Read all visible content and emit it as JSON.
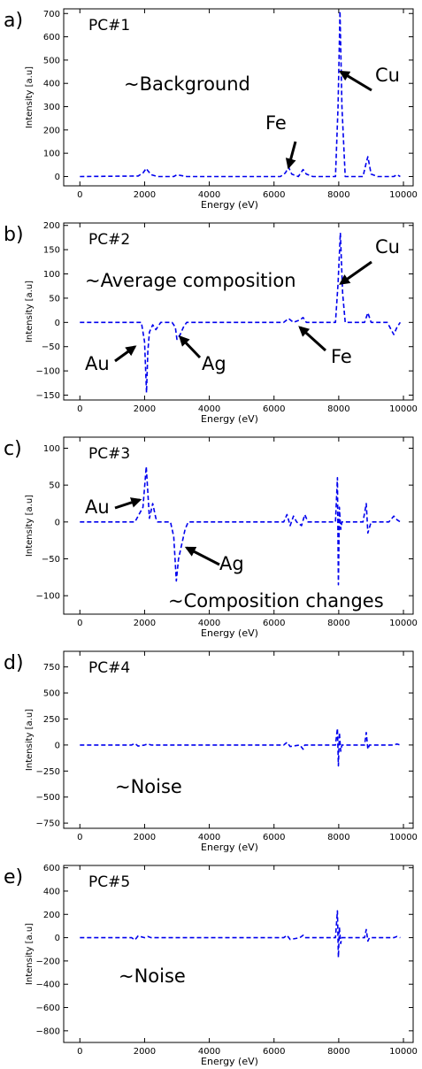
{
  "chart_data": [
    {
      "type": "line",
      "panel_letter": "a)",
      "pc_label": "PC#1",
      "annotation": "~Background",
      "xlabel": "Energy (eV)",
      "ylabel": "Intensity [a.u]",
      "xlim": [
        -500,
        10300
      ],
      "ylim": [
        -40,
        720
      ],
      "xticks": [
        0,
        2000,
        4000,
        6000,
        8000,
        10000
      ],
      "xtick_labels": [
        "0",
        "2000",
        "4000",
        "6000",
        "8000",
        "10000"
      ],
      "yticks": [
        0,
        100,
        200,
        300,
        400,
        500,
        600,
        700
      ],
      "ytick_labels": [
        "0",
        "100",
        "200",
        "300",
        "400",
        "500",
        "600",
        "700"
      ],
      "color": "#0000ee",
      "element_labels": [
        {
          "text": "Fe",
          "target": [
            6450,
            40
          ]
        },
        {
          "text": "Cu",
          "target": [
            8060,
            450
          ]
        }
      ],
      "series": [
        {
          "x": [
            0,
            1800,
            1950,
            2050,
            2100,
            2200,
            2400,
            2900,
            3000,
            3100,
            3300,
            6200,
            6350,
            6450,
            6550,
            6750,
            6900,
            7000,
            7200,
            7900,
            7980,
            8040,
            8100,
            8200,
            8750,
            8850,
            8900,
            9000,
            9200,
            9700,
            9800,
            9900
          ],
          "y": [
            0,
            2,
            15,
            35,
            25,
            8,
            0,
            0,
            8,
            5,
            0,
            0,
            15,
            40,
            10,
            0,
            30,
            10,
            0,
            0,
            300,
            710,
            300,
            0,
            0,
            60,
            85,
            10,
            0,
            0,
            8,
            0
          ]
        }
      ]
    },
    {
      "type": "line",
      "panel_letter": "b)",
      "pc_label": "PC#2",
      "annotation": "~Average composition",
      "xlabel": "Energy (eV)",
      "ylabel": "Intensity [a.u]",
      "xlim": [
        -500,
        10300
      ],
      "ylim": [
        -160,
        205
      ],
      "xticks": [
        0,
        2000,
        4000,
        6000,
        8000,
        10000
      ],
      "xtick_labels": [
        "0",
        "2000",
        "4000",
        "6000",
        "8000",
        "10000"
      ],
      "yticks": [
        -150,
        -100,
        -50,
        0,
        50,
        100,
        150,
        200
      ],
      "ytick_labels": [
        "−150",
        "−100",
        "−50",
        "0",
        "50",
        "100",
        "150",
        "200"
      ],
      "color": "#0000ee",
      "element_labels": [
        {
          "text": "Cu",
          "target": [
            8060,
            80
          ]
        },
        {
          "text": "Au",
          "target": [
            1700,
            -50
          ]
        },
        {
          "text": "Ag",
          "target": [
            3100,
            -30
          ]
        },
        {
          "text": "Fe",
          "target": [
            6800,
            -10
          ]
        }
      ],
      "series": [
        {
          "x": [
            0,
            1900,
            2000,
            2060,
            2100,
            2150,
            2250,
            2350,
            2500,
            2850,
            2950,
            3000,
            3100,
            3200,
            3300,
            6300,
            6450,
            6600,
            6800,
            6900,
            7000,
            7900,
            7980,
            8050,
            8120,
            8200,
            8800,
            8900,
            9000,
            9500,
            9700,
            9800,
            9900
          ],
          "y": [
            0,
            0,
            -40,
            -145,
            -60,
            -20,
            -5,
            -15,
            0,
            0,
            -10,
            -35,
            -25,
            -10,
            0,
            0,
            8,
            0,
            5,
            10,
            0,
            0,
            80,
            185,
            60,
            0,
            0,
            20,
            0,
            0,
            -25,
            -10,
            0
          ]
        }
      ]
    },
    {
      "type": "line",
      "panel_letter": "c)",
      "pc_label": "PC#3",
      "annotation": "~Composition changes",
      "xlabel": "Energy (eV)",
      "ylabel": "Intensity [a.u]",
      "xlim": [
        -500,
        10300
      ],
      "ylim": [
        -125,
        115
      ],
      "xticks": [
        0,
        2000,
        4000,
        6000,
        8000,
        10000
      ],
      "xtick_labels": [
        "0",
        "2000",
        "4000",
        "6000",
        "8000",
        "10000"
      ],
      "yticks": [
        -100,
        -50,
        0,
        50,
        100
      ],
      "ytick_labels": [
        "−100",
        "−50",
        "0",
        "50",
        "100"
      ],
      "color": "#0000ee",
      "element_labels": [
        {
          "text": "Au",
          "target": [
            1850,
            30
          ]
        },
        {
          "text": "Ag",
          "target": [
            3300,
            -35
          ]
        }
      ],
      "series": [
        {
          "x": [
            0,
            1700,
            1800,
            1950,
            2050,
            2100,
            2150,
            2250,
            2350,
            2400,
            2800,
            2900,
            2980,
            3050,
            3150,
            3250,
            3350,
            6300,
            6400,
            6500,
            6600,
            6700,
            6850,
            6950,
            7050,
            7900,
            7960,
            7990,
            8020,
            8060,
            8100,
            8750,
            8850,
            8900,
            9000,
            9550,
            9700,
            9800,
            9900
          ],
          "y": [
            0,
            0,
            8,
            20,
            75,
            40,
            5,
            25,
            5,
            0,
            0,
            -20,
            -80,
            -50,
            -30,
            -10,
            0,
            0,
            10,
            -5,
            8,
            0,
            -5,
            10,
            0,
            0,
            60,
            -85,
            20,
            -10,
            0,
            0,
            25,
            -15,
            0,
            0,
            8,
            3,
            0
          ]
        }
      ]
    },
    {
      "type": "line",
      "panel_letter": "d)",
      "pc_label": "PC#4",
      "annotation": "~Noise",
      "xlabel": "Energy (eV)",
      "ylabel": "Intensity [a.u]",
      "xlim": [
        -500,
        10300
      ],
      "ylim": [
        -800,
        900
      ],
      "xticks": [
        0,
        2000,
        4000,
        6000,
        8000,
        10000
      ],
      "xtick_labels": [
        "0",
        "2000",
        "4000",
        "6000",
        "8000",
        "10000"
      ],
      "yticks": [
        -750,
        -500,
        -250,
        0,
        250,
        500,
        750
      ],
      "ytick_labels": [
        "−750",
        "−500",
        "−250",
        "0",
        "250",
        "500",
        "750"
      ],
      "color": "#0000ee",
      "element_labels": [],
      "series": [
        {
          "x": [
            0,
            1600,
            1700,
            1800,
            2000,
            2100,
            2200,
            6300,
            6400,
            6500,
            6800,
            6900,
            6950,
            7900,
            7960,
            7990,
            8020,
            8060,
            8100,
            8800,
            8850,
            8900,
            8950,
            9700,
            9800,
            9900
          ],
          "y": [
            0,
            0,
            15,
            -10,
            0,
            10,
            0,
            0,
            25,
            -15,
            0,
            -40,
            0,
            0,
            160,
            -200,
            120,
            -60,
            0,
            0,
            120,
            -40,
            0,
            0,
            10,
            0
          ]
        }
      ]
    },
    {
      "type": "line",
      "panel_letter": "e)",
      "pc_label": "PC#5",
      "annotation": "~Noise",
      "xlabel": "Energy (eV)",
      "ylabel": "Intensity [a.u]",
      "xlim": [
        -500,
        10300
      ],
      "ylim": [
        -900,
        620
      ],
      "xticks": [
        0,
        2000,
        4000,
        6000,
        8000,
        10000
      ],
      "xtick_labels": [
        "0",
        "2000",
        "4000",
        "6000",
        "8000",
        "10000"
      ],
      "yticks": [
        -800,
        -600,
        -400,
        -200,
        0,
        200,
        400,
        600
      ],
      "ytick_labels": [
        "−800",
        "−600",
        "−400",
        "−200",
        "0",
        "200",
        "400",
        "600"
      ],
      "color": "#0000ee",
      "element_labels": [],
      "series": [
        {
          "x": [
            0,
            1600,
            1700,
            1800,
            2000,
            2100,
            2200,
            6300,
            6400,
            6500,
            6800,
            6900,
            6950,
            7900,
            7960,
            7990,
            8020,
            8060,
            8100,
            8800,
            8850,
            8900,
            8950,
            9700,
            9800,
            9900
          ],
          "y": [
            0,
            0,
            -20,
            15,
            0,
            10,
            0,
            0,
            20,
            -15,
            0,
            20,
            0,
            0,
            230,
            -170,
            90,
            -50,
            0,
            0,
            70,
            -30,
            0,
            0,
            10,
            0
          ]
        }
      ]
    }
  ]
}
